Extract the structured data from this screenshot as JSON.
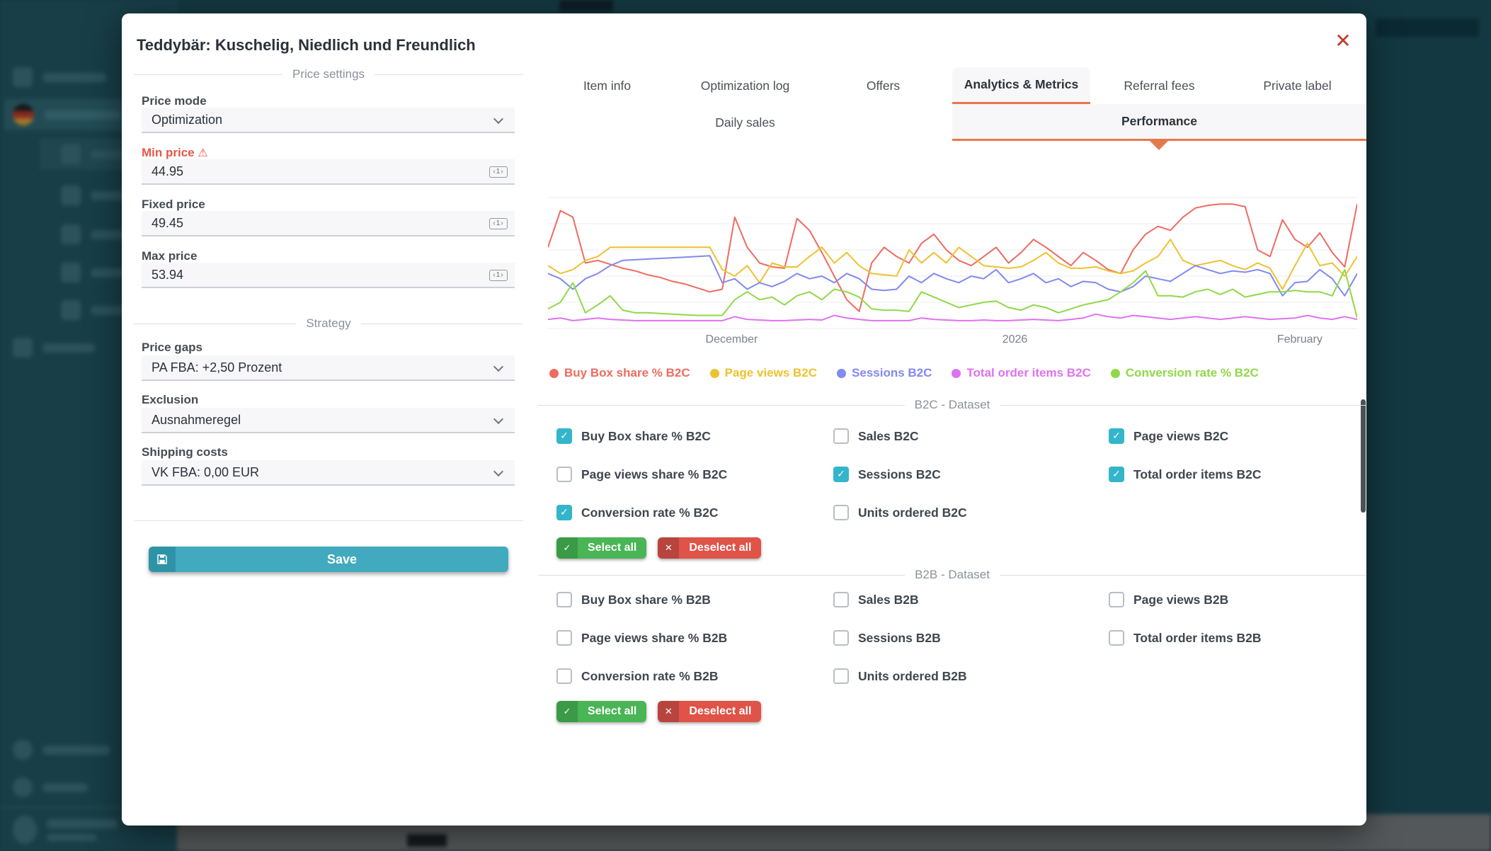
{
  "modal": {
    "title": "Teddybär: Kuschelig, Niedlich und Freundlich"
  },
  "icons": {
    "close": "✕",
    "warning": "⚠",
    "check": "✓",
    "cross": "✕",
    "stepper": "‹1›"
  },
  "price_settings": {
    "section_title": "Price settings",
    "price_mode": {
      "label": "Price mode",
      "value": "Optimization"
    },
    "min_price": {
      "label": "Min price",
      "value": "44.95"
    },
    "fixed_price": {
      "label": "Fixed price",
      "value": "49.45"
    },
    "max_price": {
      "label": "Max price",
      "value": "53.94"
    }
  },
  "strategy": {
    "section_title": "Strategy",
    "price_gaps": {
      "label": "Price gaps",
      "value": "PA FBA: +2,50 Prozent"
    },
    "exclusion": {
      "label": "Exclusion",
      "value": "Ausnahmeregel"
    },
    "shipping_costs": {
      "label": "Shipping costs",
      "value": "VK FBA: 0,00 EUR"
    },
    "save_label": "Save"
  },
  "tabs": {
    "row1": [
      {
        "label": "Item info"
      },
      {
        "label": "Optimization log"
      },
      {
        "label": "Offers"
      },
      {
        "label": "Analytics & Metrics",
        "active": true
      },
      {
        "label": "Referral fees"
      },
      {
        "label": "Private label"
      }
    ],
    "row2": [
      {
        "label": "Daily sales"
      },
      {
        "label": "Performance",
        "active": true
      }
    ]
  },
  "chart_data": {
    "type": "line",
    "title": "",
    "xlabel": "",
    "ylabel": "",
    "ylim": [
      0,
      100
    ],
    "grid": true,
    "legend_position": "bottom",
    "x_axis_labels": [
      {
        "label": "December",
        "position": 0.227
      },
      {
        "label": "2026",
        "position": 0.577
      },
      {
        "label": "February",
        "position": 0.929
      }
    ],
    "series": [
      {
        "name": "Buy Box share % B2C",
        "color": "#ee6b60",
        "values": [
          62,
          90,
          85,
          50,
          52,
          49,
          46,
          44,
          41,
          39,
          36,
          34,
          31,
          28,
          30,
          85,
          62,
          50,
          47,
          46,
          84,
          75,
          58,
          40,
          22,
          13,
          50,
          62,
          55,
          50,
          65,
          72,
          60,
          52,
          48,
          55,
          62,
          50,
          58,
          68,
          62,
          55,
          48,
          58,
          52,
          45,
          42,
          60,
          72,
          78,
          75,
          85,
          92,
          94,
          95,
          95,
          93,
          60,
          55,
          83,
          68,
          62,
          73,
          58,
          47,
          95
        ]
      },
      {
        "name": "Page views B2C",
        "color": "#edc22f",
        "values": [
          48,
          42,
          45,
          52,
          55,
          62,
          62,
          62,
          62,
          62,
          62,
          62,
          62,
          62,
          45,
          40,
          48,
          35,
          50,
          47,
          47,
          55,
          62,
          50,
          58,
          48,
          42,
          41,
          40,
          60,
          50,
          58,
          50,
          62,
          55,
          48,
          47,
          46,
          47,
          52,
          58,
          50,
          46,
          46,
          47,
          44,
          42,
          44,
          50,
          55,
          68,
          52,
          48,
          50,
          52,
          48,
          45,
          50,
          46,
          30,
          48,
          65,
          48,
          50,
          40,
          55
        ]
      },
      {
        "name": "Sessions B2C",
        "color": "#8289f0",
        "values": [
          42,
          38,
          30,
          38,
          42,
          48,
          52,
          52.5,
          53,
          53.5,
          54,
          54.5,
          55,
          55.5,
          35,
          38,
          30,
          35,
          32,
          36,
          42,
          38,
          40,
          35,
          42,
          38,
          30,
          29,
          30,
          40,
          35,
          42,
          38,
          35,
          40,
          38,
          45,
          35,
          38,
          42,
          35,
          38,
          32,
          36,
          35,
          30,
          28,
          32,
          40,
          38,
          36,
          42,
          48,
          45,
          42,
          44,
          43,
          45,
          42,
          25,
          35,
          36,
          45,
          38,
          25,
          42
        ]
      },
      {
        "name": "Total order items B2C",
        "color": "#df72f0",
        "values": [
          7,
          8,
          6,
          7,
          8,
          7,
          6.5,
          6,
          6,
          6,
          6,
          6,
          6,
          6,
          6,
          9,
          7,
          6.5,
          6,
          6,
          6.5,
          7,
          6.5,
          10,
          8,
          7,
          6,
          6,
          6,
          6,
          8,
          7,
          6.5,
          6,
          6,
          6.5,
          6,
          6,
          6.5,
          7,
          6.5,
          6,
          7,
          8,
          11,
          9,
          8,
          10,
          9,
          8,
          7,
          8,
          9,
          8,
          7,
          8,
          9,
          8,
          7,
          7.5,
          8,
          10,
          8,
          7,
          9,
          7
        ]
      },
      {
        "name": "Conversion rate % B2C",
        "color": "#8fd948",
        "values": [
          15,
          20,
          35,
          12,
          18,
          25,
          14,
          12,
          12,
          11.5,
          11,
          10.5,
          10,
          10,
          10,
          22,
          28,
          22,
          24,
          18,
          25,
          28,
          22,
          30,
          28,
          24,
          15,
          14,
          14,
          13,
          28,
          24,
          20,
          16,
          18,
          20,
          21,
          16,
          14,
          18,
          16,
          12,
          15,
          18,
          20,
          22,
          28,
          35,
          44,
          25,
          25,
          24,
          28,
          30,
          26,
          30,
          24,
          26,
          28,
          28,
          29,
          28,
          28,
          25,
          45,
          8
        ]
      }
    ]
  },
  "b2c_dataset": {
    "section_title": "B2C - Dataset",
    "columns": [
      [
        {
          "label": "Buy Box share % B2C",
          "checked": true
        },
        {
          "label": "Page views share % B2C",
          "checked": false
        },
        {
          "label": "Conversion rate % B2C",
          "checked": true
        }
      ],
      [
        {
          "label": "Sales B2C",
          "checked": false
        },
        {
          "label": "Sessions B2C",
          "checked": true
        },
        {
          "label": "Units ordered B2C",
          "checked": false
        }
      ],
      [
        {
          "label": "Page views B2C",
          "checked": true
        },
        {
          "label": "Total order items B2C",
          "checked": true
        }
      ]
    ],
    "select_all_label": "Select all",
    "deselect_all_label": "Deselect all"
  },
  "b2b_dataset": {
    "section_title": "B2B - Dataset",
    "columns": [
      [
        {
          "label": "Buy Box share % B2B",
          "checked": false
        },
        {
          "label": "Page views share % B2B",
          "checked": false
        },
        {
          "label": "Conversion rate % B2B",
          "checked": false
        }
      ],
      [
        {
          "label": "Sales B2B",
          "checked": false
        },
        {
          "label": "Sessions B2B",
          "checked": false
        },
        {
          "label": "Units ordered B2B",
          "checked": false
        }
      ],
      [
        {
          "label": "Page views B2B",
          "checked": false
        },
        {
          "label": "Total order items B2B",
          "checked": false
        }
      ]
    ],
    "select_all_label": "Select all",
    "deselect_all_label": "Deselect all"
  },
  "colors": {
    "accent_orange": "#e5794e",
    "save_teal": "#41aabf",
    "checkbox_teal": "#33b5cb",
    "select_all_green": "#49b554",
    "deselect_all_red": "#df5348",
    "close_red": "#c0392b",
    "warning_red": "#e85647"
  }
}
